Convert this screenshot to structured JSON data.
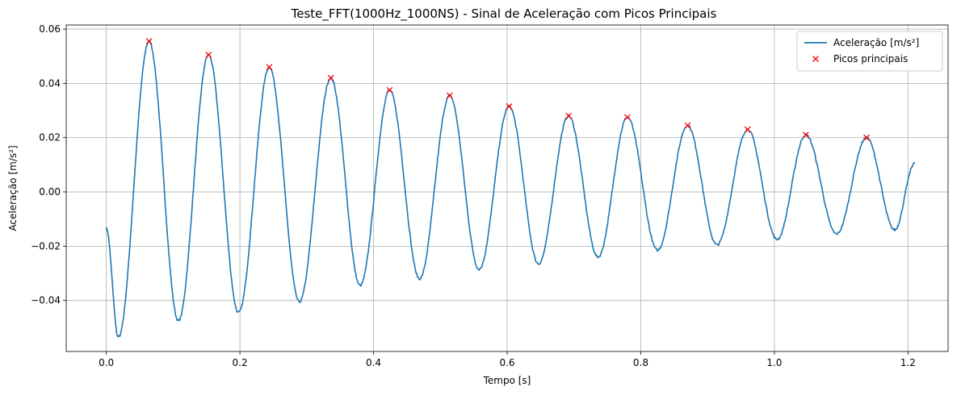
{
  "chart_data": {
    "type": "line",
    "title": "Teste_FFT(1000Hz_1000NS) - Sinal de Aceleração com Picos Principais",
    "xlabel": "Tempo [s]",
    "ylabel": "Aceleração [m/s²]",
    "xlim": [
      -0.06,
      1.26
    ],
    "ylim": [
      -0.0588,
      0.0615
    ],
    "xticks": [
      0.0,
      0.2,
      0.4,
      0.6,
      0.8,
      1.0,
      1.2
    ],
    "xtick_labels": [
      "0.0",
      "0.2",
      "0.4",
      "0.6",
      "0.8",
      "1.0",
      "1.2"
    ],
    "yticks": [
      -0.04,
      -0.02,
      0.0,
      0.02,
      0.04,
      0.06
    ],
    "ytick_labels": [
      "−0.04",
      "−0.02",
      "0.00",
      "0.02",
      "0.04",
      "0.06"
    ],
    "grid": true,
    "legend_position": "top-right",
    "colors": {
      "signal": "#1f77b4",
      "peaks": "#ff0000"
    },
    "series": [
      {
        "name": "Aceleração [m/s²]",
        "style": "line",
        "x": [
          0.0,
          0.018,
          0.064,
          0.108,
          0.153,
          0.198,
          0.244,
          0.289,
          0.336,
          0.38,
          0.424,
          0.469,
          0.514,
          0.558,
          0.603,
          0.647,
          0.692,
          0.736,
          0.78,
          0.825,
          0.87,
          0.914,
          0.96,
          1.004,
          1.047,
          1.093,
          1.138,
          1.18,
          1.21
        ],
        "y": [
          -0.0135,
          -0.0535,
          0.0555,
          -0.0475,
          0.0505,
          -0.0445,
          0.046,
          -0.0405,
          0.042,
          -0.0345,
          0.0375,
          -0.032,
          0.0355,
          -0.0285,
          0.0315,
          -0.0265,
          0.028,
          -0.024,
          0.0275,
          -0.0215,
          0.0245,
          -0.0195,
          0.023,
          -0.0175,
          0.021,
          -0.0155,
          0.02,
          -0.014,
          0.0105
        ]
      },
      {
        "name": "Picos principais",
        "style": "marker-x",
        "x": [
          0.064,
          0.153,
          0.244,
          0.336,
          0.424,
          0.514,
          0.603,
          0.692,
          0.78,
          0.87,
          0.96,
          1.047,
          1.138
        ],
        "y": [
          0.0555,
          0.0505,
          0.046,
          0.042,
          0.0375,
          0.0355,
          0.0315,
          0.028,
          0.0275,
          0.0245,
          0.023,
          0.021,
          0.02
        ]
      }
    ]
  }
}
